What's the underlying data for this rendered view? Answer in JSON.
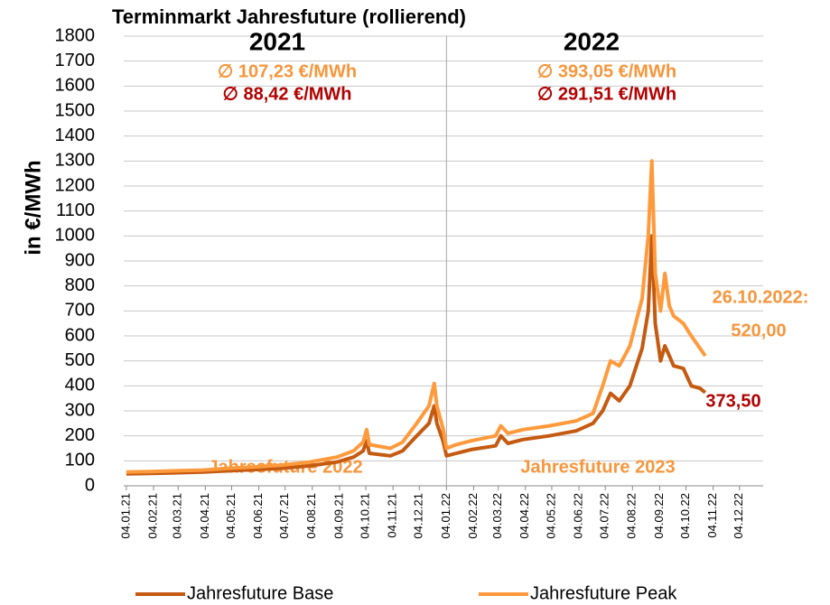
{
  "chart_data": {
    "type": "line",
    "title": "Terminmarkt Jahresfuture (rollierend)",
    "ylabel": "in €/MWh",
    "annotations": [
      "2021",
      "2022",
      "∅ 107,23 €/MWh",
      "∅ 88,42 €/MWh",
      "∅ 393,05 €/MWh",
      "∅ 291,51 €/MWh",
      "26.10.2022:",
      "520,00",
      "373,50",
      "Jahresfuture 2022",
      "Jahresfuture 2023"
    ],
    "x": [
      "04.01.21",
      "01.02.21",
      "01.03.21",
      "01.04.21",
      "01.05.21",
      "01.06.21",
      "01.07.21",
      "01.08.21",
      "01.09.21",
      "20.09.21",
      "01.10.21",
      "05.10.21",
      "08.10.21",
      "01.11.21",
      "15.11.21",
      "01.12.21",
      "15.12.21",
      "21.12.21",
      "24.12.21",
      "31.12.21",
      "04.01.22",
      "15.01.22",
      "01.02.22",
      "01.03.22",
      "07.03.22",
      "15.03.22",
      "01.04.22",
      "01.05.22",
      "01.06.22",
      "20.06.22",
      "01.07.22",
      "10.07.22",
      "20.07.22",
      "01.08.22",
      "15.08.22",
      "22.08.22",
      "26.08.22",
      "30.08.22",
      "05.09.22",
      "10.09.22",
      "15.09.22",
      "20.09.22",
      "01.10.22",
      "10.10.22",
      "20.10.22",
      "26.10.22"
    ],
    "series": [
      {
        "name": "Jahresfuture Base",
        "color": "#c55a11",
        "values": [
          48,
          50,
          52,
          55,
          60,
          65,
          70,
          80,
          95,
          115,
          140,
          180,
          130,
          120,
          140,
          200,
          250,
          320,
          250,
          180,
          120,
          130,
          145,
          160,
          200,
          170,
          185,
          200,
          220,
          250,
          300,
          370,
          340,
          400,
          550,
          700,
          1000,
          650,
          500,
          560,
          520,
          480,
          470,
          400,
          390,
          373.5
        ]
      },
      {
        "name": "Jahresfuture Peak",
        "color": "#ff9a3c",
        "values": [
          55,
          57,
          60,
          63,
          70,
          76,
          83,
          95,
          115,
          140,
          175,
          225,
          165,
          150,
          175,
          250,
          320,
          410,
          320,
          230,
          150,
          165,
          180,
          200,
          240,
          210,
          225,
          240,
          260,
          290,
          400,
          500,
          480,
          560,
          750,
          1000,
          1300,
          850,
          700,
          850,
          720,
          680,
          650,
          600,
          550,
          520
        ]
      }
    ],
    "xlim": [
      "01.01.21",
      "31.12.22"
    ],
    "xticks": [
      "04.01.21",
      "04.02.21",
      "04.03.21",
      "04.04.21",
      "04.05.21",
      "04.06.21",
      "04.07.21",
      "04.08.21",
      "04.09.21",
      "04.10.21",
      "04.11.21",
      "04.12.21",
      "04.01.22",
      "04.02.22",
      "04.03.22",
      "04.04.22",
      "04.05.22",
      "04.06.22",
      "04.07.22",
      "04.08.22",
      "04.09.22",
      "04.10.22",
      "04.11.22",
      "04.12.22"
    ],
    "ylim": [
      0,
      1800
    ],
    "yticks": [
      0,
      100,
      200,
      300,
      400,
      500,
      600,
      700,
      800,
      900,
      1000,
      1100,
      1200,
      1300,
      1400,
      1500,
      1600,
      1700,
      1800
    ],
    "grid": true,
    "legend": "bottom"
  }
}
